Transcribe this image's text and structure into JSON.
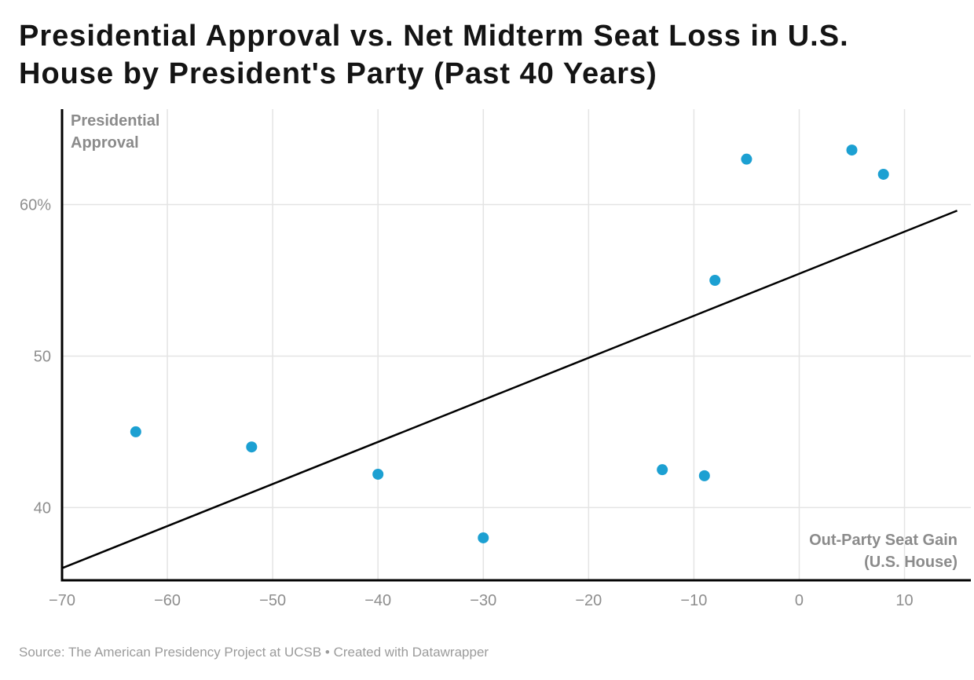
{
  "header": {
    "title": "Presidential Approval vs. Net Midterm Seat Loss in U.S. House by President's Party (Past 40 Years)"
  },
  "chart_data": {
    "type": "scatter",
    "title": "Presidential Approval vs. Net Midterm Seat Loss in U.S. House by President's Party (Past 40 Years)",
    "ylabel": "Presidential Approval",
    "xlabel": "Out-Party Seat Gain (U.S. House)",
    "xlim": [
      -70,
      16.3
    ],
    "ylim": [
      35.2,
      66.3
    ],
    "grid": "both",
    "legend": "none",
    "x_ticks": [
      {
        "value": -70,
        "label": "−70"
      },
      {
        "value": -60,
        "label": "−60"
      },
      {
        "value": -50,
        "label": "−50"
      },
      {
        "value": -40,
        "label": "−40"
      },
      {
        "value": -30,
        "label": "−30"
      },
      {
        "value": -20,
        "label": "−20"
      },
      {
        "value": -10,
        "label": "−10"
      },
      {
        "value": 0,
        "label": "0"
      },
      {
        "value": 10,
        "label": "10"
      }
    ],
    "y_ticks": [
      {
        "value": 40,
        "label": "40"
      },
      {
        "value": 50,
        "label": "50"
      },
      {
        "value": 60,
        "label": "60%"
      }
    ],
    "points": [
      {
        "x": -63,
        "y": 45
      },
      {
        "x": -52,
        "y": 44
      },
      {
        "x": -40,
        "y": 42.2
      },
      {
        "x": -30,
        "y": 38
      },
      {
        "x": -13,
        "y": 42.5
      },
      {
        "x": -9,
        "y": 42.1
      },
      {
        "x": -8,
        "y": 55
      },
      {
        "x": -5,
        "y": 63
      },
      {
        "x": 5,
        "y": 63.6
      },
      {
        "x": 8,
        "y": 62
      }
    ],
    "trend_line": {
      "x1": -70,
      "y1": 36,
      "x2": 15,
      "y2": 59.6
    },
    "point_radius": 7,
    "colors": {
      "point": "#1CA0D2",
      "trend_line": "#000000",
      "axis": "#000000",
      "gridline": "#e4e4e4",
      "tick_text": "#8e8e8e",
      "axis_label_text": "#8b8b8b",
      "title_text": "#141414",
      "source_text": "#9b9b9b"
    }
  },
  "footer": {
    "source": "Source: The American Presidency Project at UCSB • Created with Datawrapper"
  }
}
